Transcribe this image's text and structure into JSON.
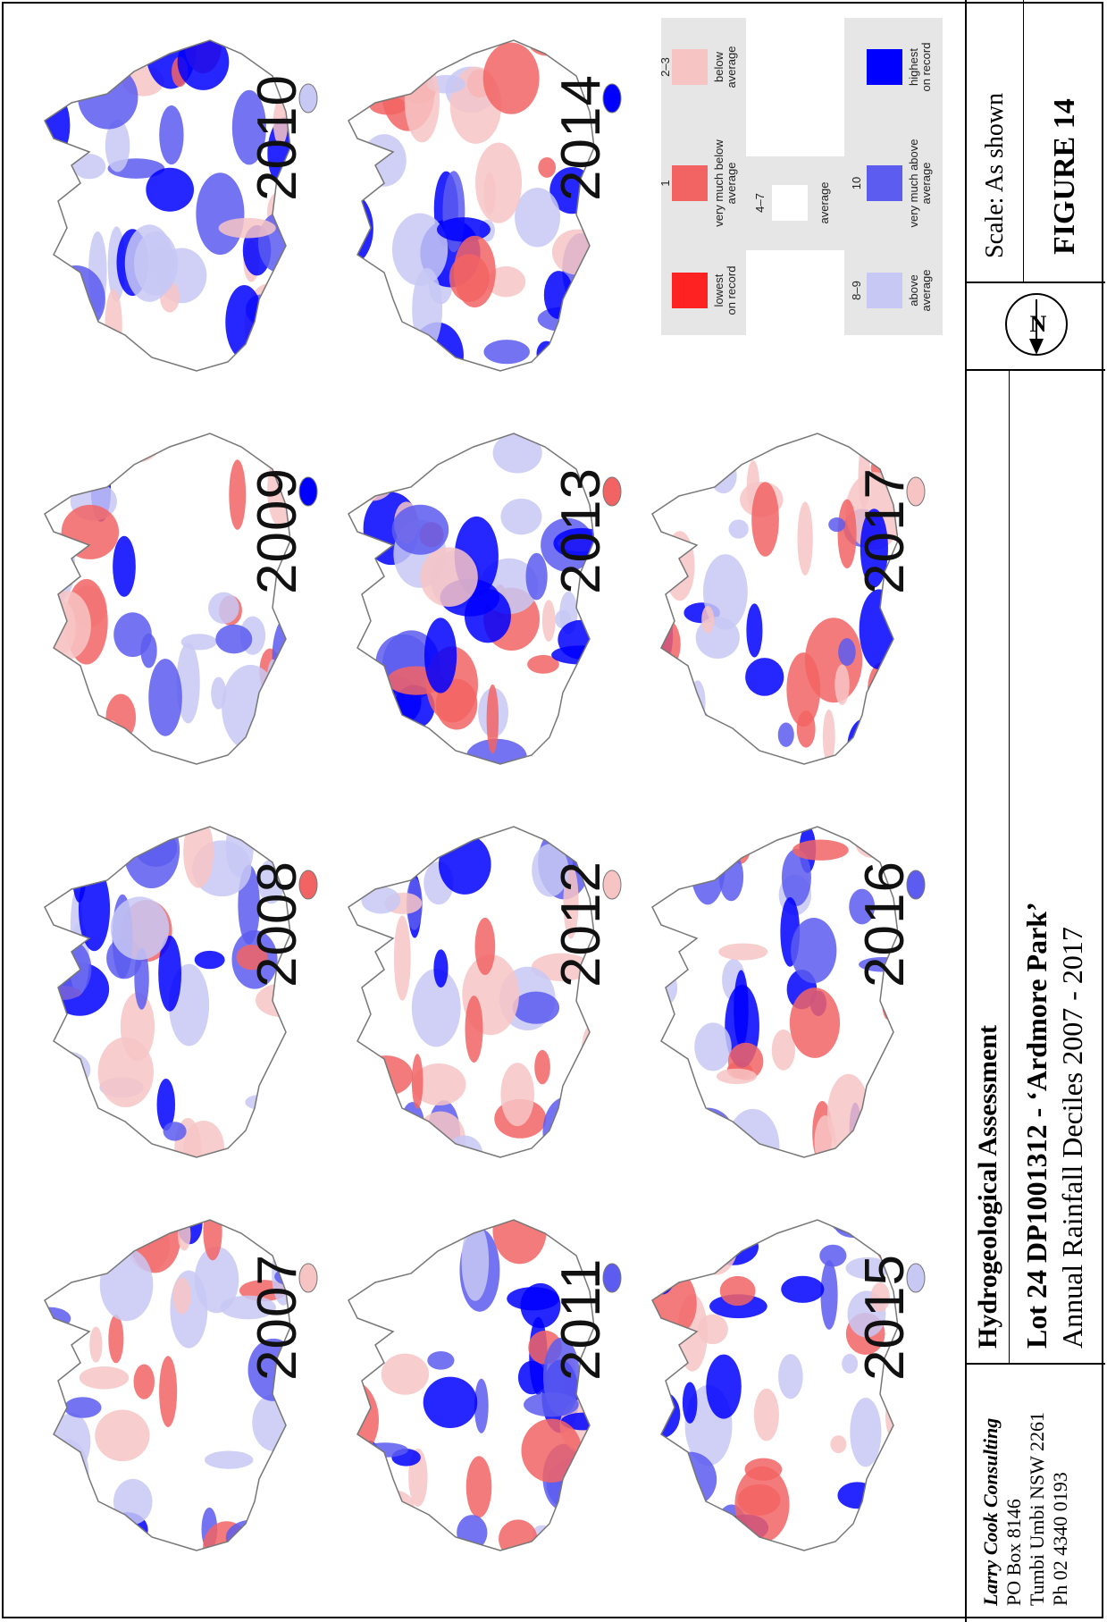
{
  "years": [
    "2007",
    "2008",
    "2009",
    "2010",
    "2011",
    "2012",
    "2013",
    "2014",
    "2015",
    "2016",
    "2017"
  ],
  "legend": {
    "lowest": {
      "range": "",
      "label1": "lowest",
      "label2": "on record",
      "color": "#ff2222"
    },
    "very_below": {
      "range": "1",
      "label1": "very much below",
      "label2": "average",
      "color": "#f26464"
    },
    "below": {
      "range": "2–3",
      "label1": "below",
      "label2": "average",
      "color": "#f7c4c4"
    },
    "average": {
      "range": "4–7",
      "label1": "average",
      "color": "#ffffff"
    },
    "above": {
      "range": "8–9",
      "label1": "above",
      "label2": "average",
      "color": "#c8c8f4"
    },
    "very_above": {
      "range": "10",
      "label1": "very much above",
      "label2": "average",
      "color": "#5c5cf0"
    },
    "highest": {
      "range": "",
      "label1": "highest",
      "label2": "on record",
      "color": "#0000ff"
    }
  },
  "titleblock": {
    "firm": "Larry Cook Consulting",
    "address1": "PO Box 8146",
    "address2": "Tumbi Umbi NSW 2261",
    "phone": "Ph 02 4340 0193",
    "title": "Hydrogeological Assessment",
    "subtitle": "Lot 24 DP1001312 - ‘Ardmore Park’",
    "description": "Annual Rainfall Deciles 2007 - 2017",
    "scale": "Scale: As shown",
    "figure": "FIGURE 14",
    "north": "N"
  }
}
